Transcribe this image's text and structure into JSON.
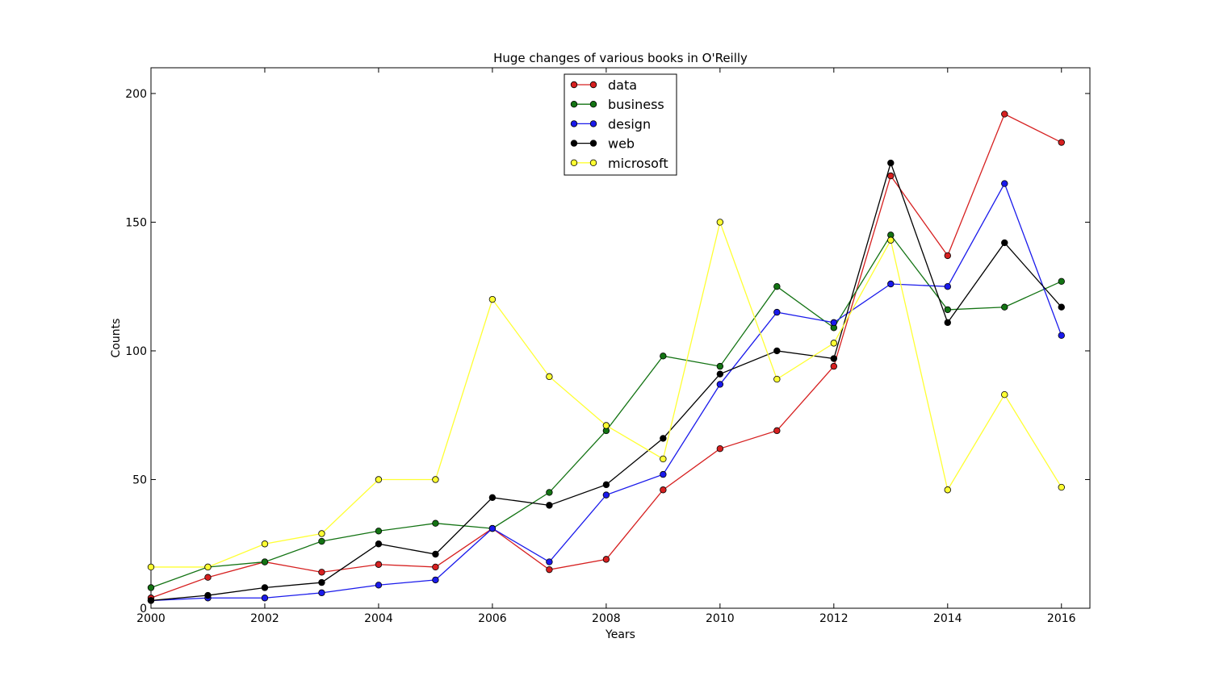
{
  "chart_data": {
    "type": "line",
    "title": "Huge changes of various books in O'Reilly",
    "xlabel": "Years",
    "ylabel": "Counts",
    "xlim": [
      2000,
      2016.5
    ],
    "ylim": [
      0,
      210
    ],
    "xticks": [
      2000,
      2002,
      2004,
      2006,
      2008,
      2010,
      2012,
      2014,
      2016
    ],
    "yticks": [
      0,
      50,
      100,
      150,
      200
    ],
    "grid": false,
    "legend_position": "upper-center",
    "x": [
      2000,
      2001,
      2002,
      2003,
      2004,
      2005,
      2006,
      2007,
      2008,
      2009,
      2010,
      2011,
      2012,
      2013,
      2014,
      2015,
      2016
    ],
    "series": [
      {
        "name": "data",
        "color": "#d62020",
        "values": [
          4,
          12,
          18,
          14,
          17,
          16,
          31,
          15,
          19,
          46,
          62,
          69,
          94,
          168,
          137,
          192,
          181
        ]
      },
      {
        "name": "business",
        "color": "#137313",
        "values": [
          8,
          16,
          18,
          26,
          30,
          33,
          31,
          45,
          69,
          98,
          94,
          125,
          109,
          145,
          116,
          117,
          127
        ]
      },
      {
        "name": "design",
        "color": "#1a1aeb",
        "values": [
          3,
          4,
          4,
          6,
          9,
          11,
          31,
          18,
          44,
          52,
          87,
          115,
          111,
          126,
          125,
          165,
          106
        ]
      },
      {
        "name": "web",
        "color": "#000000",
        "values": [
          3,
          5,
          8,
          10,
          25,
          21,
          43,
          40,
          48,
          66,
          91,
          100,
          97,
          173,
          111,
          142,
          117
        ]
      },
      {
        "name": "microsoft",
        "color": "#ffff33",
        "values": [
          16,
          16,
          25,
          29,
          50,
          50,
          120,
          90,
          71,
          58,
          150,
          89,
          103,
          143,
          46,
          83,
          47
        ]
      }
    ]
  }
}
